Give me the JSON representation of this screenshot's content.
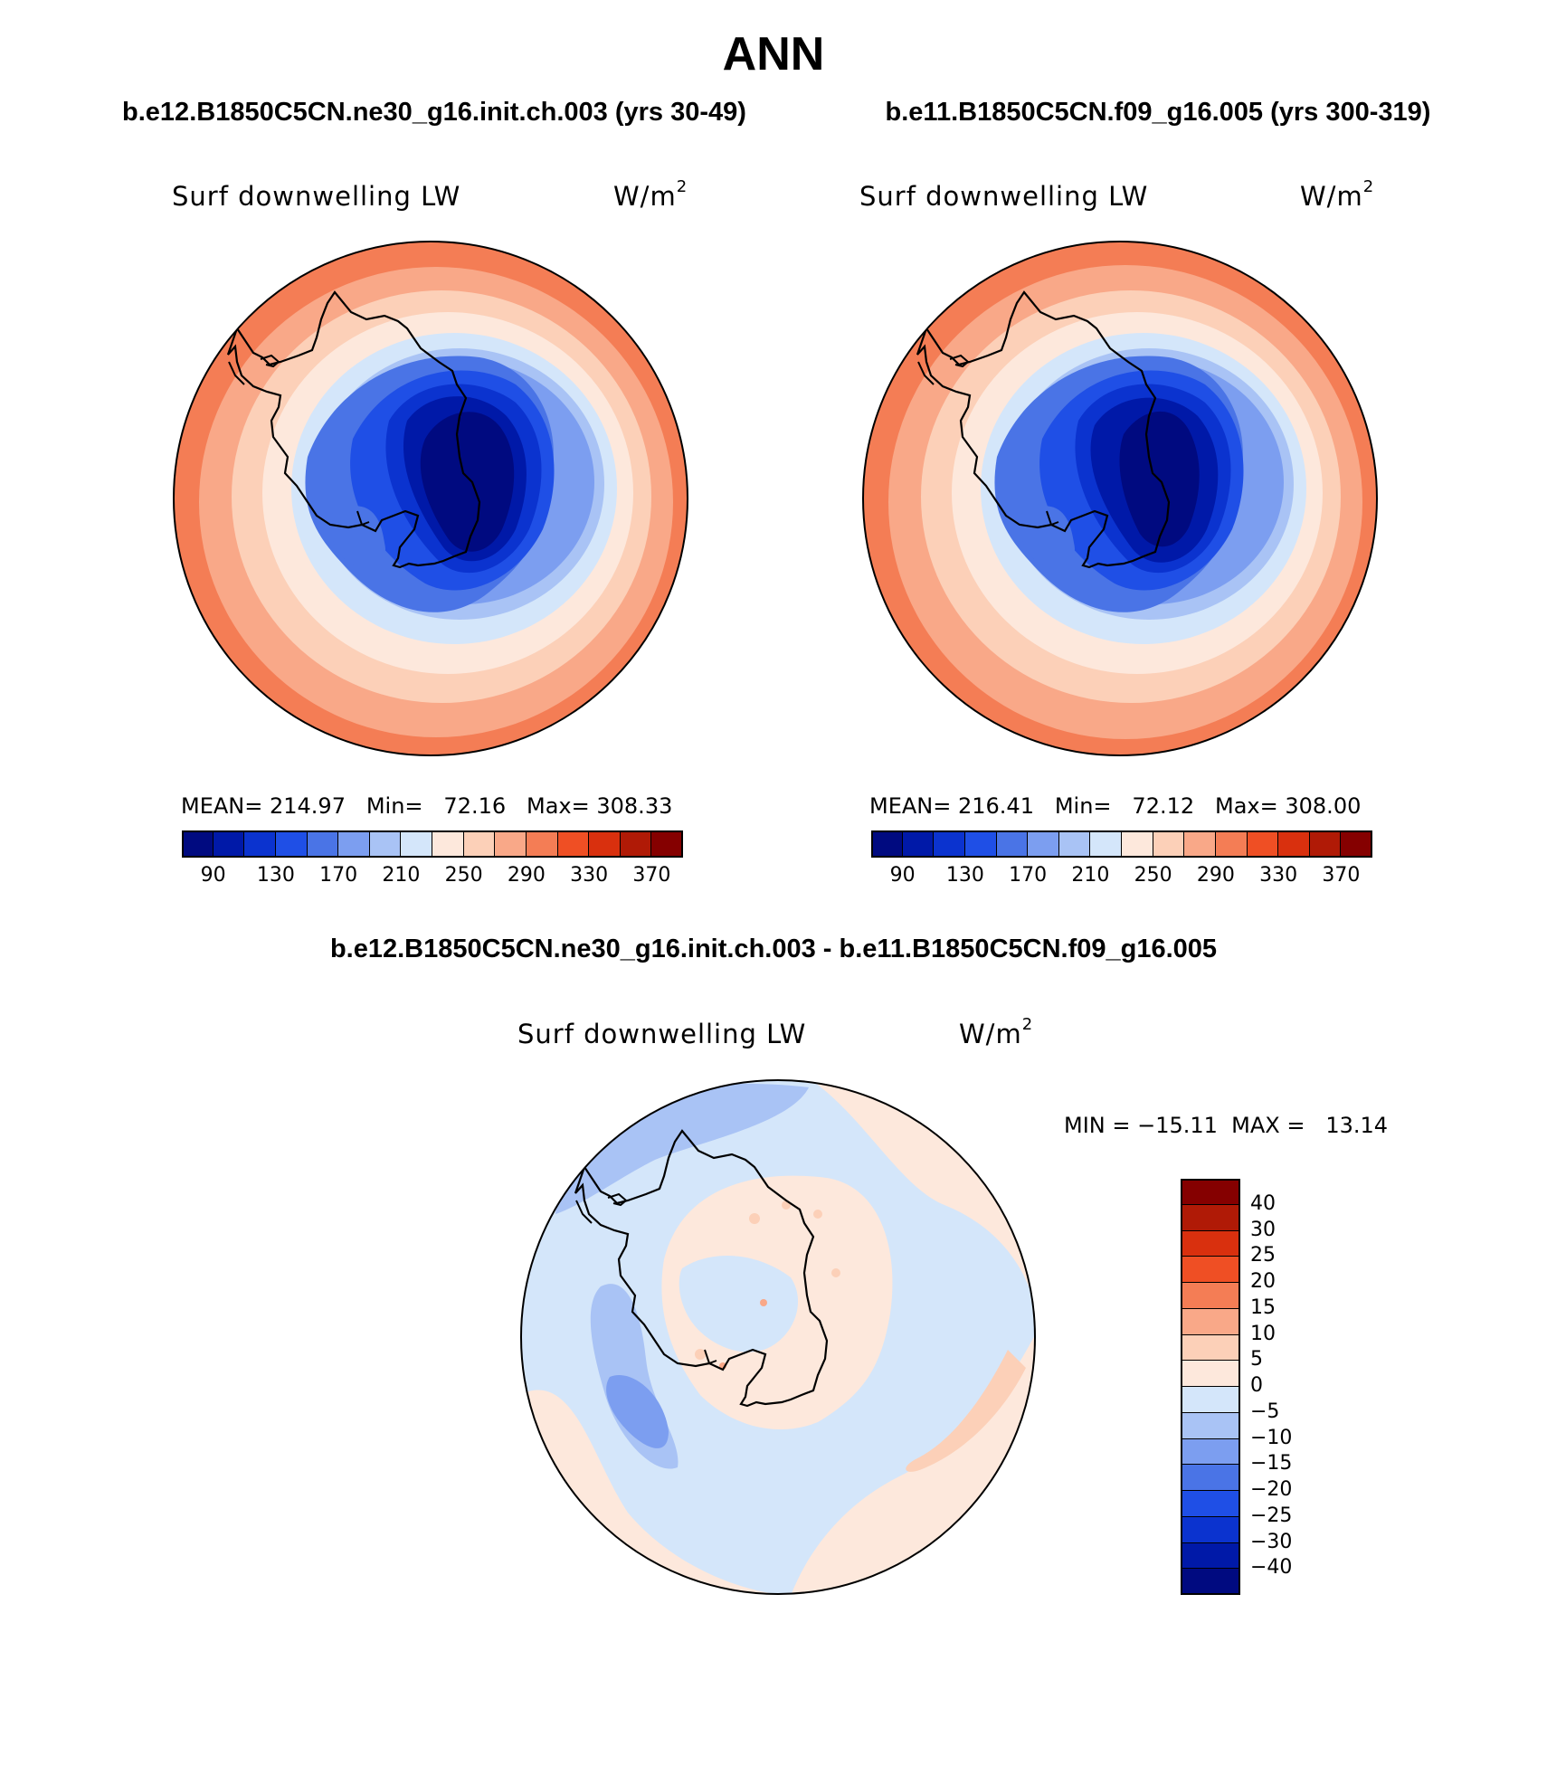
{
  "page": {
    "title": "ANN",
    "case_a_title": "b.e12.B1850C5CN.ne30_g16.init.ch.003 (yrs 30-49)",
    "case_b_title": "b.e11.B1850C5CN.f09_g16.005 (yrs 300-319)",
    "diff_title": "b.e12.B1850C5CN.ne30_g16.init.ch.003 - b.e11.B1850C5CN.f09_g16.005"
  },
  "panels": [
    {
      "variable": "Surf downwelling LW",
      "units_base": "W/m",
      "units_exp": "2",
      "stats": "MEAN= 214.97   Min=   72.16   Max= 308.33"
    },
    {
      "variable": "Surf downwelling LW",
      "units_base": "W/m",
      "units_exp": "2",
      "stats": "MEAN= 216.41   Min=   72.12   Max= 308.00"
    },
    {
      "variable": "Surf downwelling LW",
      "units_base": "W/m",
      "units_exp": "2",
      "stats": "MIN = −15.11  MAX =   13.14"
    }
  ],
  "colorbar_abs": {
    "colors": [
      "#000a80",
      "#0019a8",
      "#0b33cf",
      "#1f4fe6",
      "#4a74e6",
      "#7c9ef0",
      "#a9c3f5",
      "#d4e6fa",
      "#fde8dc",
      "#fcd0b8",
      "#f9a888",
      "#f47d55",
      "#ef4f24",
      "#d9300e",
      "#b01a06",
      "#850000"
    ],
    "tick_labels": [
      "90",
      "130",
      "170",
      "210",
      "250",
      "290",
      "330",
      "370"
    ]
  },
  "colorbar_diff": {
    "colors": [
      "#000a80",
      "#0019a8",
      "#0b33cf",
      "#1f4fe6",
      "#4a74e6",
      "#7c9ef0",
      "#a9c3f5",
      "#d4e6fa",
      "#fde8dc",
      "#fcd0b8",
      "#f9a888",
      "#f47d55",
      "#ef4f24",
      "#d9300e",
      "#b01a06",
      "#850000"
    ],
    "tick_labels": [
      "40",
      "30",
      "25",
      "20",
      "15",
      "10",
      "5",
      "0",
      "−5",
      "−10",
      "−15",
      "−20",
      "−25",
      "−30",
      "−40"
    ]
  },
  "chart_data": [
    {
      "type": "heatmap",
      "title": "Surf downwelling LW",
      "units": "W/m2",
      "projection": "south polar stereographic",
      "mean": 214.97,
      "min": 72.16,
      "max": 308.33,
      "levels": [
        90,
        130,
        170,
        210,
        250,
        290,
        330,
        370
      ]
    },
    {
      "type": "heatmap",
      "title": "Surf downwelling LW",
      "units": "W/m2",
      "projection": "south polar stereographic",
      "mean": 216.41,
      "min": 72.12,
      "max": 308.0,
      "levels": [
        90,
        130,
        170,
        210,
        250,
        290,
        330,
        370
      ]
    },
    {
      "type": "heatmap",
      "title": "Surf downwelling LW",
      "units": "W/m2",
      "projection": "south polar stereographic",
      "min": -15.11,
      "max": 13.14,
      "levels": [
        -40,
        -30,
        -25,
        -20,
        -15,
        -10,
        -5,
        0,
        5,
        10,
        15,
        20,
        25,
        30,
        40
      ]
    }
  ]
}
